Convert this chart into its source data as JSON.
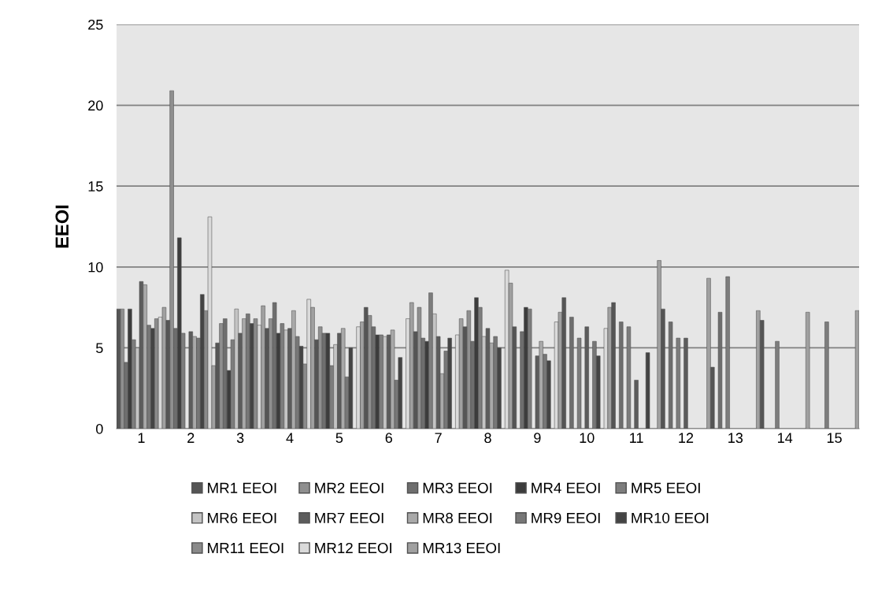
{
  "chart_data": {
    "type": "bar",
    "ylabel": "EEOI",
    "categories": [
      "1",
      "2",
      "3",
      "4",
      "5",
      "6",
      "7",
      "8",
      "9",
      "10",
      "11",
      "12",
      "13",
      "14",
      "15"
    ],
    "ylim": [
      0,
      25
    ],
    "yticks": [
      0,
      5,
      10,
      15,
      20,
      25
    ],
    "grid": "y",
    "legend": "bottom",
    "series": [
      {
        "name": "MR1 EEOI",
        "color": "#555555",
        "values": [
          7.4,
          6.7,
          5.3,
          6.2,
          5.5,
          7.5,
          6.0,
          6.3,
          6.3,
          8.1,
          7.8,
          7.4,
          3.8,
          6.7,
          null
        ]
      },
      {
        "name": "MR2 EEOI",
        "color": "#8f8f8f",
        "values": [
          7.4,
          20.9,
          6.5,
          6.8,
          6.3,
          7.0,
          7.5,
          7.3,
          null,
          null,
          null,
          null,
          null,
          null,
          null
        ]
      },
      {
        "name": "MR3 EEOI",
        "color": "#6e6e6e",
        "values": [
          4.1,
          6.2,
          6.8,
          7.8,
          5.9,
          6.3,
          5.6,
          5.4,
          6.0,
          6.9,
          6.6,
          6.6,
          7.2,
          null,
          null
        ]
      },
      {
        "name": "MR4 EEOI",
        "color": "#3c3c3c",
        "values": [
          7.4,
          11.8,
          3.6,
          5.9,
          5.9,
          5.8,
          5.4,
          8.1,
          7.5,
          null,
          null,
          null,
          null,
          null,
          null
        ]
      },
      {
        "name": "MR5 EEOI",
        "color": "#7d7d7d",
        "values": [
          5.5,
          5.9,
          5.5,
          6.5,
          3.9,
          5.8,
          8.4,
          7.5,
          7.4,
          5.6,
          6.3,
          5.6,
          9.4,
          5.4,
          6.6
        ]
      },
      {
        "name": "MR6 EEOI",
        "color": "#c4c4c4",
        "values": [
          5.0,
          null,
          7.4,
          6.1,
          5.2,
          5.7,
          7.1,
          5.7,
          null,
          null,
          null,
          null,
          null,
          null,
          null
        ]
      },
      {
        "name": "MR7 EEOI",
        "color": "#5c5c5c",
        "values": [
          9.1,
          6.0,
          5.9,
          6.2,
          5.9,
          5.8,
          5.7,
          6.2,
          4.5,
          6.3,
          3.0,
          5.6,
          null,
          null,
          null
        ]
      },
      {
        "name": "MR8 EEOI",
        "color": "#a9a9a9",
        "values": [
          8.9,
          5.7,
          6.8,
          7.3,
          6.2,
          6.1,
          3.4,
          5.3,
          5.4,
          null,
          null,
          null,
          null,
          null,
          null
        ]
      },
      {
        "name": "MR9 EEOI",
        "color": "#777777",
        "values": [
          6.4,
          5.6,
          7.1,
          5.7,
          3.2,
          3.0,
          4.8,
          5.7,
          4.6,
          5.4,
          null,
          null,
          null,
          null,
          null
        ]
      },
      {
        "name": "MR10 EEOI",
        "color": "#444444",
        "values": [
          6.2,
          8.3,
          6.5,
          5.1,
          5.0,
          4.4,
          5.6,
          5.0,
          4.2,
          4.5,
          4.7,
          null,
          null,
          null,
          null
        ]
      },
      {
        "name": "MR11 EEOI",
        "color": "#8a8a8a",
        "values": [
          6.8,
          7.3,
          6.8,
          4.0,
          null,
          null,
          null,
          null,
          null,
          null,
          null,
          null,
          null,
          null,
          null
        ]
      },
      {
        "name": "MR12 EEOI",
        "color": "#dadada",
        "values": [
          6.9,
          13.1,
          6.4,
          8.0,
          6.3,
          6.8,
          5.8,
          9.8,
          6.6,
          6.2,
          null,
          null,
          null,
          null,
          null
        ]
      },
      {
        "name": "MR13 EEOI",
        "color": "#a0a0a0",
        "values": [
          7.5,
          3.9,
          7.6,
          7.5,
          6.6,
          7.8,
          6.8,
          9.0,
          7.2,
          7.5,
          10.4,
          9.3,
          7.3,
          7.2,
          7.3
        ]
      }
    ]
  }
}
